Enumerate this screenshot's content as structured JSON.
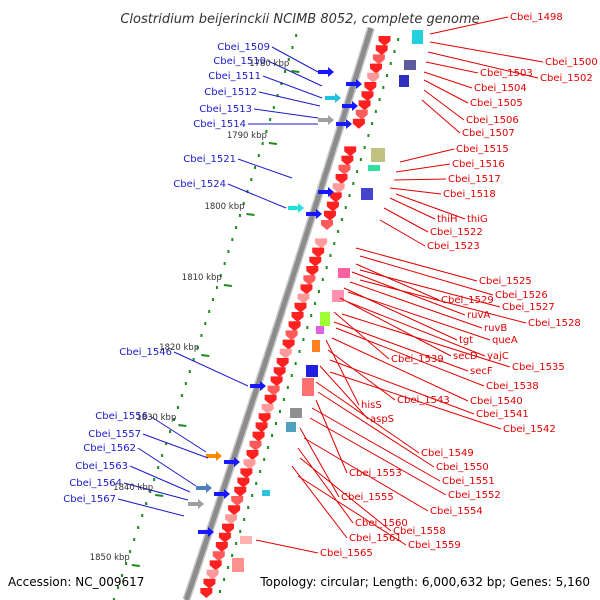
{
  "title": "Clostridium beijerinckii NCIMB 8052, complete genome",
  "footer": {
    "accession": "Accession: NC_009617",
    "summary": "Topology: circular; Length: 6,000,632 bp; Genes: 5,160"
  },
  "colors": {
    "forward_label": "#1a1acc",
    "reverse_label": "#e00000",
    "backbone": "#8c8c8c",
    "tick": "#1e8a1e"
  },
  "scale_marks": [
    {
      "label": "1780 kbp"
    },
    {
      "label": "1790 kbp"
    },
    {
      "label": "1800 kbp"
    },
    {
      "label": "1810 kbp"
    },
    {
      "label": "1820 kbp"
    },
    {
      "label": "1830 kbp"
    },
    {
      "label": "1840 kbp"
    },
    {
      "label": "1850 kbp"
    }
  ],
  "forward_genes": [
    {
      "label": "Cbei_1509"
    },
    {
      "label": "Cbei_1510"
    },
    {
      "label": "Cbei_1511"
    },
    {
      "label": "Cbei_1512"
    },
    {
      "label": "Cbei_1513"
    },
    {
      "label": "Cbei_1514"
    },
    {
      "label": "Cbei_1521"
    },
    {
      "label": "Cbei_1524"
    },
    {
      "label": "Cbei_1546"
    },
    {
      "label": "Cbei_1556"
    },
    {
      "label": "Cbei_1557"
    },
    {
      "label": "Cbei_1562"
    },
    {
      "label": "Cbei_1563"
    },
    {
      "label": "Cbei_1564"
    },
    {
      "label": "Cbei_1567"
    }
  ],
  "reverse_genes": [
    {
      "label": "Cbei_1498"
    },
    {
      "label": "Cbei_1500"
    },
    {
      "label": "Cbei_1502"
    },
    {
      "label": "Cbei_1503"
    },
    {
      "label": "Cbei_1504"
    },
    {
      "label": "Cbei_1505"
    },
    {
      "label": "Cbei_1506"
    },
    {
      "label": "Cbei_1507"
    },
    {
      "label": "Cbei_1515"
    },
    {
      "label": "Cbei_1516"
    },
    {
      "label": "Cbei_1517"
    },
    {
      "label": "Cbei_1518"
    },
    {
      "label": "thiH"
    },
    {
      "label": "thiG"
    },
    {
      "label": "Cbei_1522"
    },
    {
      "label": "Cbei_1523"
    },
    {
      "label": "Cbei_1525"
    },
    {
      "label": "Cbei_1526"
    },
    {
      "label": "Cbei_1529"
    },
    {
      "label": "Cbei_1527"
    },
    {
      "label": "ruvA"
    },
    {
      "label": "Cbei_1528"
    },
    {
      "label": "ruvB"
    },
    {
      "label": "tgt"
    },
    {
      "label": "queA"
    },
    {
      "label": "secD"
    },
    {
      "label": "yajC"
    },
    {
      "label": "Cbei_1539"
    },
    {
      "label": "Cbei_1535"
    },
    {
      "label": "secF"
    },
    {
      "label": "Cbei_1538"
    },
    {
      "label": "Cbei_1540"
    },
    {
      "label": "hisS"
    },
    {
      "label": "Cbei_1543"
    },
    {
      "label": "Cbei_1541"
    },
    {
      "label": "aspS"
    },
    {
      "label": "Cbei_1542"
    },
    {
      "label": "Cbei_1549"
    },
    {
      "label": "Cbei_1550"
    },
    {
      "label": "Cbei_1553"
    },
    {
      "label": "Cbei_1551"
    },
    {
      "label": "Cbei_1552"
    },
    {
      "label": "Cbei_1555"
    },
    {
      "label": "Cbei_1554"
    },
    {
      "label": "Cbei_1560"
    },
    {
      "label": "Cbei_1558"
    },
    {
      "label": "Cbei_1561"
    },
    {
      "label": "Cbei_1559"
    },
    {
      "label": "Cbei_1565"
    }
  ]
}
